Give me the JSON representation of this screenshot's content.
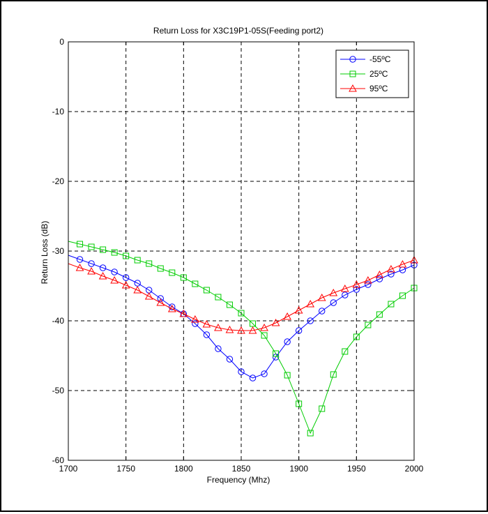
{
  "chart_data": {
    "type": "line",
    "title": "Return Loss for X3C19P1-05S(Feeding port2)",
    "xlabel": "Frequency (Mhz)",
    "ylabel": "Return Loss (dB)",
    "xlim": [
      1700,
      2000
    ],
    "ylim": [
      -60,
      0
    ],
    "xticks": [
      1700,
      1750,
      1800,
      1850,
      1900,
      1950,
      2000
    ],
    "yticks": [
      0,
      -10,
      -20,
      -30,
      -40,
      -50,
      -60
    ],
    "grid": true,
    "legend_position": "top-right",
    "x": [
      1700,
      1710,
      1720,
      1730,
      1740,
      1750,
      1760,
      1770,
      1780,
      1790,
      1800,
      1810,
      1820,
      1830,
      1840,
      1850,
      1860,
      1870,
      1880,
      1890,
      1900,
      1910,
      1920,
      1930,
      1940,
      1950,
      1960,
      1970,
      1980,
      1990,
      2000
    ],
    "series": [
      {
        "name": "-55ºC",
        "color": "#0000ff",
        "marker": "circle",
        "values": [
          -30.6,
          -31.2,
          -31.8,
          -32.4,
          -33.0,
          -33.8,
          -34.6,
          -35.6,
          -36.8,
          -38.0,
          -39.0,
          -40.4,
          -42.0,
          -44.0,
          -45.5,
          -47.3,
          -48.2,
          -47.6,
          -45.2,
          -43.0,
          -41.4,
          -40.0,
          -38.6,
          -37.4,
          -36.3,
          -35.5,
          -34.8,
          -34.0,
          -33.3,
          -32.7,
          -32.0
        ]
      },
      {
        "name": "25ºC",
        "color": "#00cc00",
        "marker": "square",
        "values": [
          -28.6,
          -29.0,
          -29.4,
          -29.8,
          -30.2,
          -30.7,
          -31.3,
          -31.8,
          -32.5,
          -33.1,
          -33.8,
          -34.7,
          -35.6,
          -36.6,
          -37.7,
          -38.9,
          -40.4,
          -42.1,
          -44.7,
          -47.8,
          -51.9,
          -56.1,
          -52.6,
          -47.7,
          -44.4,
          -42.3,
          -40.6,
          -39.1,
          -37.6,
          -36.4,
          -35.3
        ]
      },
      {
        "name": "95ºC",
        "color": "#ff0000",
        "marker": "triangle",
        "values": [
          -31.8,
          -32.4,
          -32.9,
          -33.6,
          -34.2,
          -34.9,
          -35.6,
          -36.5,
          -37.4,
          -38.3,
          -39.0,
          -39.8,
          -40.5,
          -41.0,
          -41.3,
          -41.4,
          -41.4,
          -41.0,
          -40.3,
          -39.4,
          -38.5,
          -37.6,
          -36.7,
          -36.0,
          -35.4,
          -34.8,
          -34.2,
          -33.4,
          -32.6,
          -31.9,
          -31.3
        ]
      }
    ]
  }
}
